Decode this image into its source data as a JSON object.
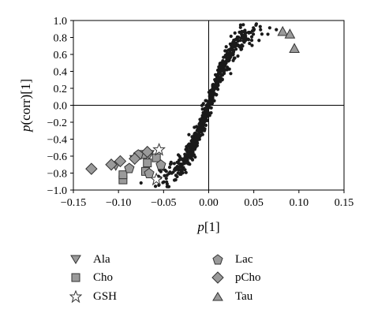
{
  "chart_data": {
    "type": "scatter",
    "title": "",
    "xlabel_main": "p",
    "xlabel_suffix": "[1]",
    "ylabel_main": "p",
    "ylabel_suffix": "(corr)[1]",
    "xlim": [
      -0.15,
      0.15
    ],
    "ylim": [
      -1.0,
      1.0
    ],
    "x_ticks": [
      "−0.15",
      "−0.10",
      "−0.05",
      "0.00",
      "0.05",
      "0.10",
      "0.15"
    ],
    "x_tick_values": [
      -0.15,
      -0.1,
      -0.05,
      0.0,
      0.05,
      0.1,
      0.15
    ],
    "y_ticks": [
      "1.0",
      "0.8",
      "0.6",
      "0.4",
      "0.2",
      "0.0",
      "−0.2",
      "−0.4",
      "−0.6",
      "−0.8",
      "−1.0"
    ],
    "y_tick_values": [
      1.0,
      0.8,
      0.6,
      0.4,
      0.2,
      0.0,
      -0.2,
      -0.4,
      -0.6,
      -0.8,
      -1.0
    ],
    "grid": false,
    "reference_lines": {
      "x": 0.0,
      "y": 0.0
    },
    "cloud": {
      "count": 600,
      "color": "#1a1a1a",
      "description_points_follow_sigmoid": true
    },
    "series": [
      {
        "name": "Ala",
        "marker": "triangle-down",
        "points": [
          [
            -0.103,
            -0.71
          ],
          [
            -0.066,
            -0.58
          ],
          [
            -0.082,
            -0.64
          ]
        ]
      },
      {
        "name": "Cho",
        "marker": "square",
        "points": [
          [
            -0.095,
            -0.88
          ],
          [
            -0.095,
            -0.82
          ],
          [
            -0.073,
            -0.58
          ],
          [
            -0.07,
            -0.78
          ],
          [
            -0.068,
            -0.68
          ],
          [
            -0.058,
            -0.62
          ]
        ]
      },
      {
        "name": "GSH",
        "marker": "star",
        "points": [
          [
            -0.055,
            -0.52
          ],
          [
            -0.058,
            -0.87
          ]
        ]
      },
      {
        "name": "Lac",
        "marker": "pentagon",
        "points": [
          [
            -0.088,
            -0.74
          ],
          [
            -0.078,
            -0.58
          ],
          [
            -0.066,
            -0.8
          ],
          [
            -0.053,
            -0.7
          ]
        ]
      },
      {
        "name": "pCho",
        "marker": "diamond",
        "points": [
          [
            -0.13,
            -0.75
          ],
          [
            -0.108,
            -0.7
          ],
          [
            -0.098,
            -0.66
          ],
          [
            -0.068,
            -0.55
          ],
          [
            -0.082,
            -0.63
          ]
        ]
      },
      {
        "name": "Tau",
        "marker": "triangle-up",
        "points": [
          [
            0.082,
            0.87
          ],
          [
            0.09,
            0.84
          ],
          [
            0.095,
            0.67
          ]
        ]
      }
    ],
    "legend_position": "bottom"
  }
}
